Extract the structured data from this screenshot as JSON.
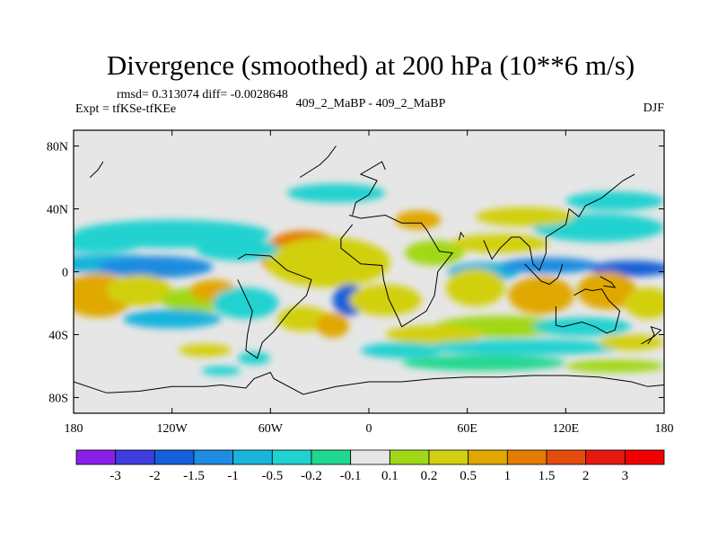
{
  "chart_data": {
    "type": "heatmap",
    "title": "Divergence (smoothed) at 200 hPa (10**6 m/s)",
    "stats": "rmsd= 0.313074  diff= -0.0028648",
    "experiment": "Expt = tfKSe-tfKEe",
    "run_label": "409_2_MaBP - 409_2_MaBP",
    "season": "DJF",
    "x_ticks": [
      "180",
      "120W",
      "60W",
      "0",
      "60E",
      "120E",
      "180"
    ],
    "x_tick_values": [
      -180,
      -120,
      -60,
      0,
      60,
      120,
      180
    ],
    "y_ticks": [
      "80N",
      "40N",
      "0",
      "40S",
      "80S"
    ],
    "y_tick_values": [
      80,
      40,
      0,
      -40,
      -80
    ],
    "xlim": [
      -180,
      180
    ],
    "ylim": [
      -90,
      90
    ],
    "colorbar": {
      "labels": [
        "-3",
        "-2",
        "-1.5",
        "-1",
        "-0.5",
        "-0.2",
        "-0.1",
        "0.1",
        "0.2",
        "0.5",
        "1",
        "1.5",
        "2",
        "3"
      ],
      "colors": [
        "#8a20e8",
        "#3e3cdc",
        "#1460d8",
        "#1e8ce0",
        "#18b4dc",
        "#20d2d0",
        "#20d890",
        "#e6e6e6",
        "#a0d818",
        "#d2d010",
        "#e0a800",
        "#e47c00",
        "#e44c10",
        "#e41a10",
        "#f00000"
      ]
    },
    "field_blobs": [
      {
        "lon": -40,
        "lat": 10,
        "rlon": 26,
        "rlat": 16,
        "level": 11
      },
      {
        "lon": -42,
        "lat": 10,
        "rlon": 16,
        "rlat": 10,
        "level": 12
      },
      {
        "lon": -40,
        "lat": 11,
        "rlon": 8,
        "rlat": 5,
        "level": 13
      },
      {
        "lon": -25,
        "lat": 6,
        "rlon": 38,
        "rlat": 16,
        "level": 9
      },
      {
        "lon": -158,
        "lat": 5,
        "rlon": 40,
        "rlat": 6,
        "level": 4
      },
      {
        "lon": -130,
        "lat": 3,
        "rlon": 35,
        "rlat": 7,
        "level": 3
      },
      {
        "lon": -165,
        "lat": 18,
        "rlon": 28,
        "rlat": 6,
        "level": 5
      },
      {
        "lon": -120,
        "lat": 24,
        "rlon": 60,
        "rlat": 9,
        "level": 5
      },
      {
        "lon": -80,
        "lat": 14,
        "rlon": 25,
        "rlat": 7,
        "level": 5
      },
      {
        "lon": -165,
        "lat": -15,
        "rlon": 22,
        "rlat": 14,
        "level": 10
      },
      {
        "lon": -140,
        "lat": -12,
        "rlon": 20,
        "rlat": 10,
        "level": 9
      },
      {
        "lon": -105,
        "lat": -18,
        "rlon": 22,
        "rlat": 8,
        "level": 8
      },
      {
        "lon": -95,
        "lat": -12,
        "rlon": 14,
        "rlat": 7,
        "level": 10
      },
      {
        "lon": -75,
        "lat": -20,
        "rlon": 20,
        "rlat": 10,
        "level": 5
      },
      {
        "lon": -120,
        "lat": -30,
        "rlon": 30,
        "rlat": 6,
        "level": 4
      },
      {
        "lon": -12,
        "lat": -18,
        "rlon": 10,
        "rlat": 10,
        "level": 2
      },
      {
        "lon": -40,
        "lat": -30,
        "rlon": 16,
        "rlat": 8,
        "level": 9
      },
      {
        "lon": -22,
        "lat": -34,
        "rlon": 10,
        "rlat": 8,
        "level": 10
      },
      {
        "lon": 10,
        "lat": -18,
        "rlon": 22,
        "rlat": 10,
        "level": 9
      },
      {
        "lon": 40,
        "lat": 12,
        "rlon": 18,
        "rlat": 8,
        "level": 8
      },
      {
        "lon": 70,
        "lat": 0,
        "rlon": 22,
        "rlat": 6,
        "level": 4
      },
      {
        "lon": 110,
        "lat": 4,
        "rlon": 30,
        "rlat": 5,
        "level": 3
      },
      {
        "lon": 160,
        "lat": 2,
        "rlon": 25,
        "rlat": 5,
        "level": 2
      },
      {
        "lon": 80,
        "lat": 18,
        "rlon": 30,
        "rlat": 6,
        "level": 9
      },
      {
        "lon": 140,
        "lat": 28,
        "rlon": 40,
        "rlat": 9,
        "level": 5
      },
      {
        "lon": 95,
        "lat": 35,
        "rlon": 30,
        "rlat": 6,
        "level": 9
      },
      {
        "lon": 30,
        "lat": 33,
        "rlon": 14,
        "rlat": 6,
        "level": 10
      },
      {
        "lon": 150,
        "lat": 45,
        "rlon": 30,
        "rlat": 6,
        "level": 5
      },
      {
        "lon": -20,
        "lat": 50,
        "rlon": 30,
        "rlat": 6,
        "level": 5
      },
      {
        "lon": 65,
        "lat": -10,
        "rlon": 18,
        "rlat": 12,
        "level": 9
      },
      {
        "lon": 105,
        "lat": -15,
        "rlon": 20,
        "rlat": 12,
        "level": 10
      },
      {
        "lon": 145,
        "lat": -12,
        "rlon": 18,
        "rlat": 12,
        "level": 10
      },
      {
        "lon": 170,
        "lat": -20,
        "rlon": 14,
        "rlat": 10,
        "level": 9
      },
      {
        "lon": 80,
        "lat": -35,
        "rlon": 40,
        "rlat": 7,
        "level": 8
      },
      {
        "lon": 40,
        "lat": -40,
        "rlon": 30,
        "rlat": 6,
        "level": 9
      },
      {
        "lon": 130,
        "lat": -35,
        "rlon": 30,
        "rlat": 6,
        "level": 5
      },
      {
        "lon": 20,
        "lat": -50,
        "rlon": 25,
        "rlat": 5,
        "level": 5
      },
      {
        "lon": 95,
        "lat": -48,
        "rlon": 60,
        "rlat": 5,
        "level": 5
      },
      {
        "lon": 160,
        "lat": -45,
        "rlon": 20,
        "rlat": 5,
        "level": 9
      },
      {
        "lon": -70,
        "lat": -55,
        "rlon": 10,
        "rlat": 4,
        "level": 5
      },
      {
        "lon": -100,
        "lat": -50,
        "rlon": 16,
        "rlat": 4,
        "level": 9
      },
      {
        "lon": 70,
        "lat": -58,
        "rlon": 50,
        "rlat": 5,
        "level": 6
      },
      {
        "lon": 150,
        "lat": -60,
        "rlon": 30,
        "rlat": 4,
        "level": 8
      },
      {
        "lon": -90,
        "lat": -63,
        "rlon": 12,
        "rlat": 3,
        "level": 5
      }
    ],
    "land_outlines": [
      [
        [
          -12,
          36
        ],
        [
          -5,
          34
        ],
        [
          10,
          36
        ],
        [
          20,
          31
        ],
        [
          32,
          31
        ],
        [
          35,
          27
        ],
        [
          43,
          13
        ],
        [
          51,
          12
        ],
        [
          42,
          0
        ],
        [
          40,
          -15
        ],
        [
          35,
          -25
        ],
        [
          20,
          -35
        ],
        [
          18,
          -30
        ],
        [
          12,
          -17
        ],
        [
          9,
          -5
        ],
        [
          8,
          4
        ],
        [
          -5,
          5
        ],
        [
          -17,
          15
        ],
        [
          -17,
          21
        ],
        [
          -10,
          30
        ]
      ],
      [
        [
          -80,
          8
        ],
        [
          -75,
          11
        ],
        [
          -60,
          10
        ],
        [
          -50,
          1
        ],
        [
          -35,
          -5
        ],
        [
          -38,
          -15
        ],
        [
          -48,
          -25
        ],
        [
          -58,
          -38
        ],
        [
          -65,
          -45
        ],
        [
          -68,
          -55
        ],
        [
          -75,
          -50
        ],
        [
          -74,
          -40
        ],
        [
          -71,
          -25
        ],
        [
          -80,
          -5
        ]
      ],
      [
        [
          -10,
          36
        ],
        [
          -8,
          44
        ],
        [
          0,
          49
        ],
        [
          5,
          58
        ],
        [
          -5,
          62
        ],
        [
          8,
          70
        ],
        [
          10,
          65
        ]
      ],
      [
        [
          -42,
          60
        ],
        [
          -30,
          68
        ],
        [
          -25,
          73
        ],
        [
          -20,
          80
        ]
      ],
      [
        [
          58,
          22
        ],
        [
          56,
          25
        ],
        [
          55,
          20
        ]
      ],
      [
        [
          70,
          20
        ],
        [
          75,
          8
        ],
        [
          80,
          15
        ],
        [
          87,
          22
        ],
        [
          92,
          22
        ],
        [
          98,
          16
        ],
        [
          100,
          5
        ],
        [
          104,
          1
        ],
        [
          108,
          12
        ],
        [
          108,
          22
        ],
        [
          120,
          30
        ],
        [
          122,
          40
        ],
        [
          128,
          35
        ],
        [
          132,
          42
        ],
        [
          142,
          47
        ],
        [
          155,
          58
        ],
        [
          162,
          62
        ]
      ],
      [
        [
          114,
          -22
        ],
        [
          114,
          -34
        ],
        [
          118,
          -35
        ],
        [
          130,
          -32
        ],
        [
          138,
          -35
        ],
        [
          145,
          -39
        ],
        [
          150,
          -37
        ],
        [
          153,
          -25
        ],
        [
          146,
          -18
        ],
        [
          142,
          -11
        ],
        [
          136,
          -12
        ],
        [
          132,
          -11
        ],
        [
          125,
          -15
        ]
      ],
      [
        [
          95,
          5
        ],
        [
          105,
          -6
        ],
        [
          110,
          -8
        ],
        [
          115,
          -4
        ],
        [
          117,
          1
        ],
        [
          118,
          5
        ]
      ],
      [
        [
          141,
          -3
        ],
        [
          148,
          -7
        ],
        [
          150,
          -10
        ],
        [
          143,
          -9
        ]
      ],
      [
        [
          166,
          -46
        ],
        [
          174,
          -41
        ],
        [
          178,
          -37
        ],
        [
          172,
          -35
        ],
        [
          174,
          -40
        ],
        [
          170,
          -46
        ]
      ],
      [
        [
          -180,
          -70
        ],
        [
          -160,
          -77
        ],
        [
          -140,
          -76
        ],
        [
          -120,
          -73
        ],
        [
          -100,
          -73
        ],
        [
          -90,
          -72
        ],
        [
          -75,
          -74
        ],
        [
          -70,
          -68
        ],
        [
          -60,
          -64
        ],
        [
          -58,
          -68
        ],
        [
          -40,
          -78
        ],
        [
          -20,
          -73
        ],
        [
          0,
          -70
        ],
        [
          20,
          -70
        ],
        [
          40,
          -68
        ],
        [
          60,
          -67
        ],
        [
          80,
          -67
        ],
        [
          100,
          -66
        ],
        [
          120,
          -66
        ],
        [
          140,
          -67
        ],
        [
          160,
          -70
        ],
        [
          170,
          -73
        ],
        [
          180,
          -72
        ]
      ],
      [
        [
          -170,
          60
        ],
        [
          -165,
          65
        ],
        [
          -162,
          70
        ]
      ]
    ]
  }
}
